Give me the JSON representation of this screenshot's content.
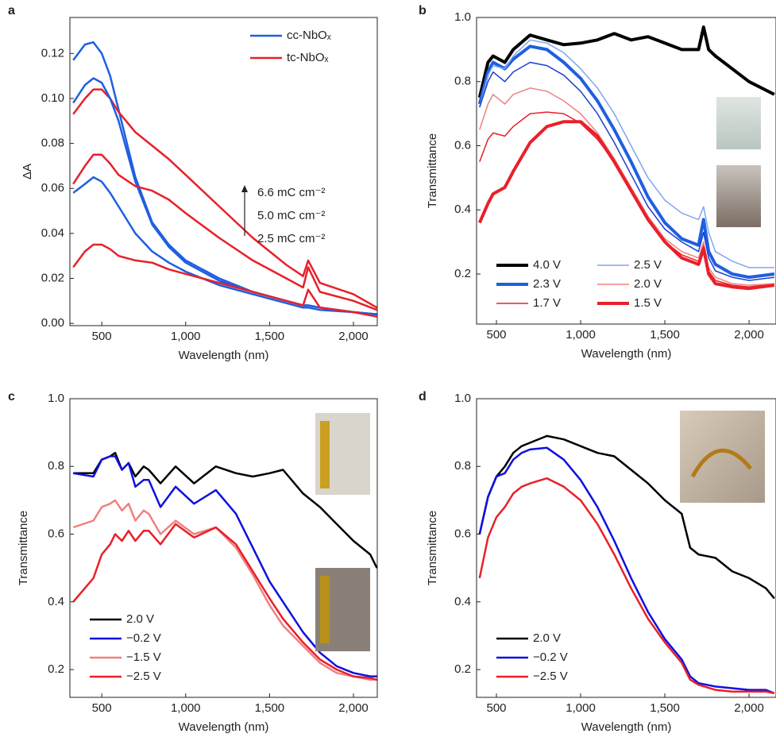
{
  "chart_data": [
    {
      "type": "line",
      "label": "a",
      "xlabel": "Wavelength (nm)",
      "ylabel": "ΔA",
      "xlim": [
        310,
        2142
      ],
      "ylim": [
        -0.001,
        0.136
      ],
      "xticks": [
        500,
        {
          "value": 1000,
          "label": "1,000"
        },
        {
          "value": 1500,
          "label": "1,500"
        },
        {
          "value": 2000,
          "label": "2,000"
        }
      ],
      "yticks": [
        {
          "value": 0,
          "label": "0.00"
        },
        0.02,
        0.04,
        0.06,
        0.08,
        {
          "value": 0.1,
          "label": "0.10"
        },
        0.12
      ],
      "legend": "upper right",
      "legend_columns": 1,
      "annotations": [
        "6.6 mC cm⁻²",
        "5.0 mC cm⁻²",
        "2.5 mC cm⁻²"
      ],
      "x": [
        330,
        400,
        450,
        500,
        550,
        600,
        700,
        800,
        900,
        1000,
        1200,
        1400,
        1600,
        1700,
        1730,
        1800,
        2000,
        2140
      ],
      "series": [
        {
          "name": "cc-NbOₓ",
          "color": "#1f5fe0",
          "linewidth": 2.5,
          "values": [
            0.117,
            0.124,
            0.125,
            0.12,
            0.11,
            0.095,
            0.065,
            0.045,
            0.035,
            0.028,
            0.02,
            0.014,
            0.01,
            0.008,
            0.008,
            0.007,
            0.005,
            0.004
          ]
        },
        {
          "name": "tc-NbOₓ",
          "color": "#e8202a",
          "linewidth": 2.5,
          "values": [
            0.093,
            0.1,
            0.104,
            0.104,
            0.1,
            0.094,
            0.085,
            0.079,
            0.073,
            0.066,
            0.052,
            0.038,
            0.026,
            0.021,
            0.028,
            0.018,
            0.013,
            0.007
          ]
        },
        {
          "color": "#1f5fe0",
          "linewidth": 2.5,
          "values": [
            0.098,
            0.106,
            0.109,
            0.107,
            0.1,
            0.09,
            0.063,
            0.044,
            0.034,
            0.027,
            0.019,
            0.014,
            0.01,
            0.008,
            0.008,
            0.007,
            0.005,
            0.004
          ]
        },
        {
          "color": "#1f5fe0",
          "linewidth": 2.5,
          "values": [
            0.058,
            0.062,
            0.065,
            0.063,
            0.058,
            0.052,
            0.04,
            0.032,
            0.027,
            0.023,
            0.017,
            0.013,
            0.009,
            0.007,
            0.007,
            0.006,
            0.005,
            0.004
          ]
        },
        {
          "color": "#e8202a",
          "linewidth": 2.5,
          "values": [
            0.062,
            0.07,
            0.075,
            0.075,
            0.071,
            0.066,
            0.061,
            0.059,
            0.055,
            0.049,
            0.038,
            0.028,
            0.02,
            0.016,
            0.025,
            0.014,
            0.01,
            0.006
          ]
        },
        {
          "color": "#e8202a",
          "linewidth": 2.5,
          "values": [
            0.025,
            0.032,
            0.035,
            0.035,
            0.033,
            0.03,
            0.028,
            0.027,
            0.024,
            0.022,
            0.018,
            0.014,
            0.01,
            0.008,
            0.015,
            0.007,
            0.005,
            0.003
          ]
        }
      ]
    },
    {
      "type": "line",
      "label": "b",
      "xlabel": "Wavelength (nm)",
      "ylabel": "Transmittance",
      "xlim": [
        382,
        2160
      ],
      "ylim": [
        0.044,
        1.0
      ],
      "xticks": [
        500,
        {
          "value": 1000,
          "label": "1,000"
        },
        {
          "value": 1500,
          "label": "1,500"
        },
        {
          "value": 2000,
          "label": "2,000"
        }
      ],
      "yticks": [
        0.2,
        0.4,
        0.6,
        0.8,
        {
          "value": 1,
          "label": "1.0"
        }
      ],
      "legend": "lower left",
      "legend_columns": 2,
      "x": [
        400,
        450,
        480,
        550,
        600,
        700,
        800,
        900,
        1000,
        1100,
        1200,
        1300,
        1400,
        1500,
        1600,
        1700,
        1730,
        1760,
        1800,
        1900,
        2000,
        2150
      ],
      "series": [
        {
          "name": "4.0 V",
          "color": "#000000",
          "linewidth": 4,
          "values": [
            0.75,
            0.86,
            0.88,
            0.86,
            0.9,
            0.945,
            0.93,
            0.915,
            0.92,
            0.93,
            0.95,
            0.93,
            0.94,
            0.92,
            0.9,
            0.9,
            0.97,
            0.9,
            0.88,
            0.84,
            0.8,
            0.76
          ]
        },
        {
          "name": "2.3 V",
          "color": "#1f5fe0",
          "linewidth": 4,
          "values": [
            0.73,
            0.83,
            0.86,
            0.84,
            0.87,
            0.91,
            0.9,
            0.86,
            0.81,
            0.74,
            0.65,
            0.55,
            0.44,
            0.36,
            0.31,
            0.29,
            0.37,
            0.27,
            0.23,
            0.2,
            0.19,
            0.2
          ]
        },
        {
          "name": "1.7 V",
          "color": "#e8202a",
          "linewidth": 1.5,
          "values": [
            0.55,
            0.62,
            0.64,
            0.63,
            0.66,
            0.7,
            0.705,
            0.7,
            0.67,
            0.62,
            0.55,
            0.46,
            0.37,
            0.3,
            0.26,
            0.24,
            0.29,
            0.21,
            0.18,
            0.165,
            0.16,
            0.17
          ]
        },
        {
          "name": "2.5 V",
          "color": "#7ea6f0",
          "linewidth": 1.5,
          "values": [
            0.72,
            0.82,
            0.85,
            0.84,
            0.88,
            0.93,
            0.92,
            0.89,
            0.84,
            0.78,
            0.7,
            0.6,
            0.5,
            0.43,
            0.39,
            0.37,
            0.41,
            0.33,
            0.27,
            0.24,
            0.22,
            0.22
          ]
        },
        {
          "name": "2.0 V",
          "color": "#f08080",
          "linewidth": 1.5,
          "values": [
            0.65,
            0.73,
            0.76,
            0.73,
            0.76,
            0.78,
            0.77,
            0.74,
            0.7,
            0.64,
            0.56,
            0.47,
            0.38,
            0.31,
            0.27,
            0.25,
            0.3,
            0.22,
            0.19,
            0.17,
            0.165,
            0.17
          ]
        },
        {
          "name": "1.5 V",
          "color": "#e8202a",
          "linewidth": 4,
          "values": [
            0.36,
            0.42,
            0.45,
            0.47,
            0.52,
            0.61,
            0.66,
            0.675,
            0.675,
            0.63,
            0.55,
            0.46,
            0.37,
            0.3,
            0.25,
            0.23,
            0.28,
            0.2,
            0.17,
            0.16,
            0.155,
            0.165
          ]
        },
        {
          "color": "#1a3fd0",
          "linewidth": 1.5,
          "values": [
            0.72,
            0.8,
            0.83,
            0.8,
            0.83,
            0.86,
            0.85,
            0.82,
            0.77,
            0.7,
            0.61,
            0.51,
            0.41,
            0.34,
            0.3,
            0.27,
            0.33,
            0.25,
            0.21,
            0.19,
            0.18,
            0.19
          ]
        }
      ]
    },
    {
      "type": "line",
      "label": "c",
      "xlabel": "Wavelength (nm)",
      "ylabel": "Transmittance",
      "xlim": [
        310,
        2142
      ],
      "ylim": [
        0.118,
        1.0
      ],
      "xticks": [
        500,
        {
          "value": 1000,
          "label": "1,000"
        },
        {
          "value": 1500,
          "label": "1,500"
        },
        {
          "value": 2000,
          "label": "2,000"
        }
      ],
      "yticks": [
        0.2,
        0.4,
        0.6,
        0.8,
        {
          "value": 1,
          "label": "1.0"
        }
      ],
      "legend": "lower left",
      "legend_columns": 1,
      "x": [
        330,
        450,
        500,
        550,
        580,
        620,
        660,
        700,
        750,
        780,
        850,
        940,
        1050,
        1180,
        1300,
        1400,
        1500,
        1580,
        1700,
        1800,
        1900,
        2000,
        2100,
        2140
      ],
      "series": [
        {
          "name": "2.0 V",
          "color": "#000000",
          "linewidth": 2.5,
          "values": [
            0.78,
            0.78,
            0.82,
            0.83,
            0.84,
            0.79,
            0.81,
            0.77,
            0.8,
            0.79,
            0.75,
            0.8,
            0.75,
            0.8,
            0.78,
            0.77,
            0.78,
            0.79,
            0.72,
            0.68,
            0.63,
            0.58,
            0.54,
            0.5
          ]
        },
        {
          "name": "−0.2 V",
          "color": "#1010e0",
          "linewidth": 2.5,
          "values": [
            0.78,
            0.77,
            0.82,
            0.83,
            0.83,
            0.79,
            0.81,
            0.74,
            0.76,
            0.76,
            0.68,
            0.74,
            0.69,
            0.73,
            0.66,
            0.56,
            0.46,
            0.4,
            0.31,
            0.25,
            0.21,
            0.19,
            0.18,
            0.18
          ]
        },
        {
          "name": "−1.5 V",
          "color": "#f08080",
          "linewidth": 2.5,
          "values": [
            0.62,
            0.64,
            0.68,
            0.69,
            0.7,
            0.67,
            0.69,
            0.64,
            0.67,
            0.66,
            0.6,
            0.64,
            0.6,
            0.62,
            0.56,
            0.48,
            0.39,
            0.33,
            0.27,
            0.22,
            0.19,
            0.18,
            0.17,
            0.17
          ]
        },
        {
          "name": "−2.5 V",
          "color": "#e8202a",
          "linewidth": 2.5,
          "values": [
            0.4,
            0.47,
            0.54,
            0.57,
            0.6,
            0.58,
            0.61,
            0.58,
            0.61,
            0.61,
            0.57,
            0.63,
            0.59,
            0.62,
            0.57,
            0.49,
            0.41,
            0.35,
            0.28,
            0.23,
            0.2,
            0.18,
            0.175,
            0.17
          ]
        }
      ]
    },
    {
      "type": "line",
      "label": "d",
      "xlabel": "Wavelength (nm)",
      "ylabel": "Transmittance",
      "xlim": [
        382,
        2160
      ],
      "ylim": [
        0.118,
        1.0
      ],
      "xticks": [
        500,
        {
          "value": 1000,
          "label": "1,000"
        },
        {
          "value": 1500,
          "label": "1,500"
        },
        {
          "value": 2000,
          "label": "2,000"
        }
      ],
      "yticks": [
        0.2,
        0.4,
        0.6,
        0.8,
        {
          "value": 1,
          "label": "1.0"
        }
      ],
      "legend": "lower left",
      "legend_columns": 1,
      "x": [
        400,
        450,
        500,
        550,
        600,
        650,
        700,
        800,
        900,
        1000,
        1100,
        1200,
        1300,
        1400,
        1500,
        1600,
        1650,
        1700,
        1800,
        1900,
        2000,
        2100,
        2150
      ],
      "series": [
        {
          "name": "2.0 V",
          "color": "#000000",
          "linewidth": 2.5,
          "values": [
            0.6,
            0.71,
            0.77,
            0.8,
            0.84,
            0.86,
            0.87,
            0.89,
            0.88,
            0.86,
            0.84,
            0.83,
            0.79,
            0.75,
            0.7,
            0.66,
            0.56,
            0.54,
            0.53,
            0.49,
            0.47,
            0.44,
            0.41
          ]
        },
        {
          "name": "−0.2 V",
          "color": "#1010e0",
          "linewidth": 2.5,
          "values": [
            0.6,
            0.71,
            0.77,
            0.78,
            0.82,
            0.84,
            0.85,
            0.855,
            0.82,
            0.76,
            0.68,
            0.58,
            0.47,
            0.37,
            0.29,
            0.23,
            0.18,
            0.16,
            0.15,
            0.145,
            0.14,
            0.14,
            0.13
          ]
        },
        {
          "name": "−2.5 V",
          "color": "#e8202a",
          "linewidth": 2.5,
          "values": [
            0.47,
            0.59,
            0.65,
            0.68,
            0.72,
            0.74,
            0.75,
            0.765,
            0.74,
            0.7,
            0.63,
            0.54,
            0.44,
            0.35,
            0.28,
            0.22,
            0.17,
            0.155,
            0.14,
            0.135,
            0.135,
            0.135,
            0.13
          ]
        }
      ]
    }
  ]
}
